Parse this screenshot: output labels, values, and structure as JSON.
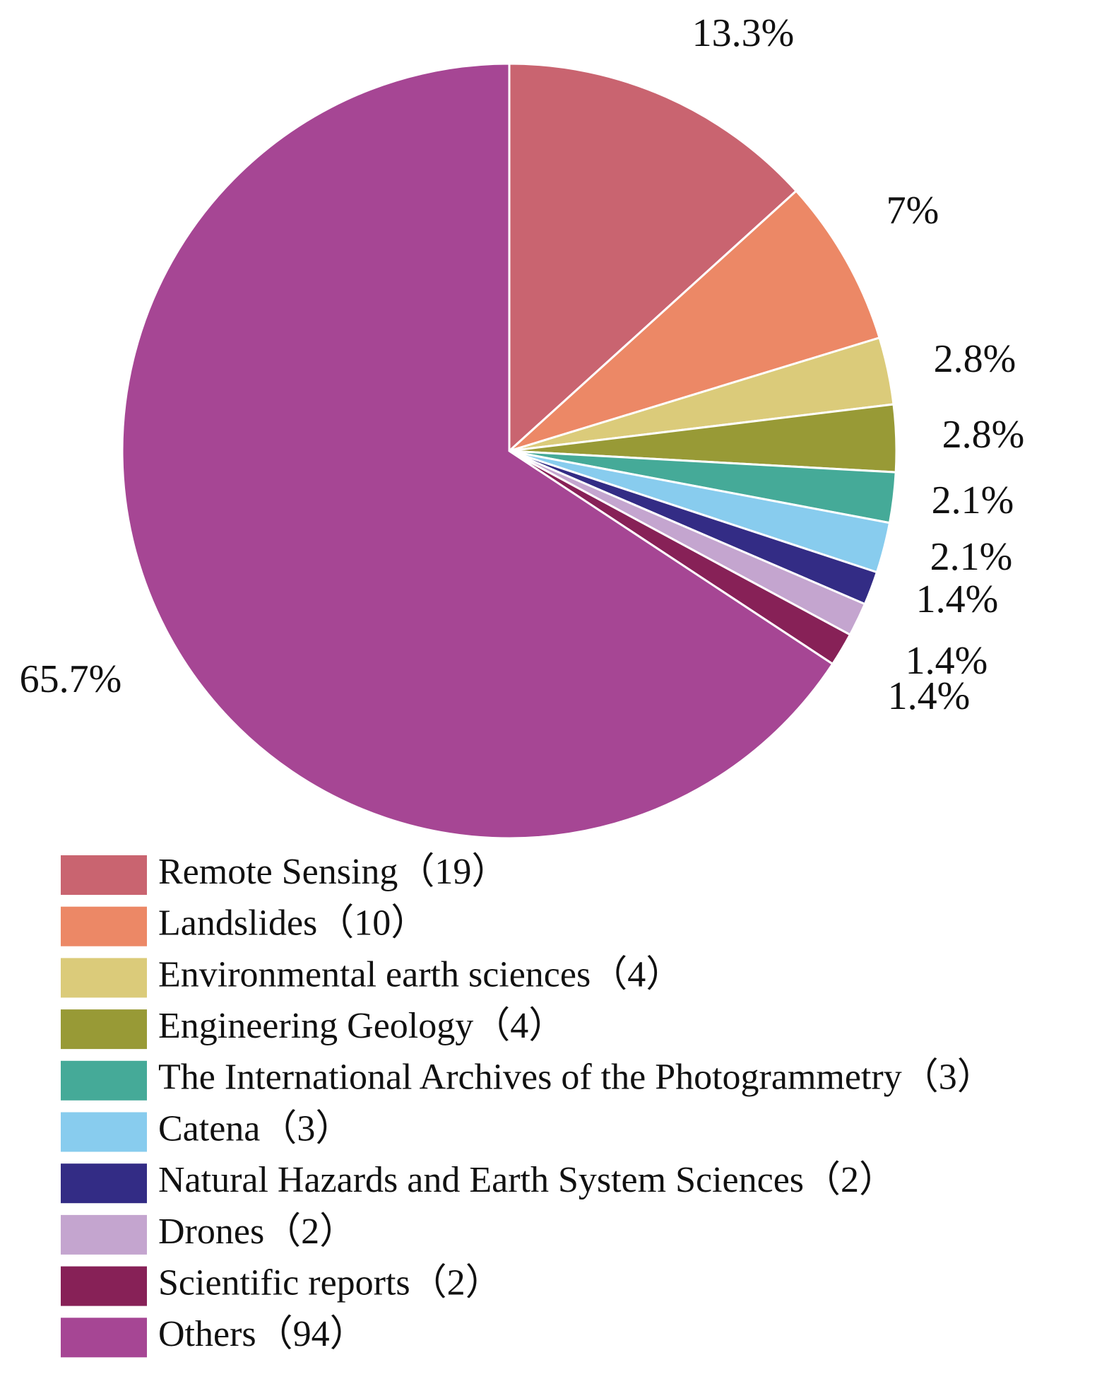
{
  "chart_data": {
    "type": "pie",
    "start_angle_deg": 0,
    "direction": "clockwise",
    "slices": [
      {
        "name": "Remote Sensing（19）",
        "value": 19,
        "label": "13.3%",
        "color": "#C96470"
      },
      {
        "name": "Landslides（10）",
        "value": 10,
        "label": "7%",
        "color": "#EC8866"
      },
      {
        "name": "Environmental earth sciences（4）",
        "value": 4,
        "label": "2.8%",
        "color": "#DBCB7A"
      },
      {
        "name": "Engineering Geology（4）",
        "value": 4,
        "label": "2.8%",
        "color": "#989A36"
      },
      {
        "name": "The International Archives of the Photogrammetry（3）",
        "value": 3,
        "label": "2.1%",
        "color": "#45AA98"
      },
      {
        "name": "Catena（3）",
        "value": 3,
        "label": "2.1%",
        "color": "#88CCEE"
      },
      {
        "name": "Natural Hazards and Earth System Sciences（2）",
        "value": 2,
        "label": "1.4%",
        "color": "#332C85"
      },
      {
        "name": "Drones（2）",
        "value": 2,
        "label": "1.4%",
        "color": "#C4A5CF"
      },
      {
        "name": "Scientific reports（2）",
        "value": 2,
        "label": "1.4%",
        "color": "#872157"
      },
      {
        "name": "Others（94）",
        "value": 94,
        "label": "65.7%",
        "color": "#A64694"
      }
    ],
    "legend_position": "bottom"
  }
}
